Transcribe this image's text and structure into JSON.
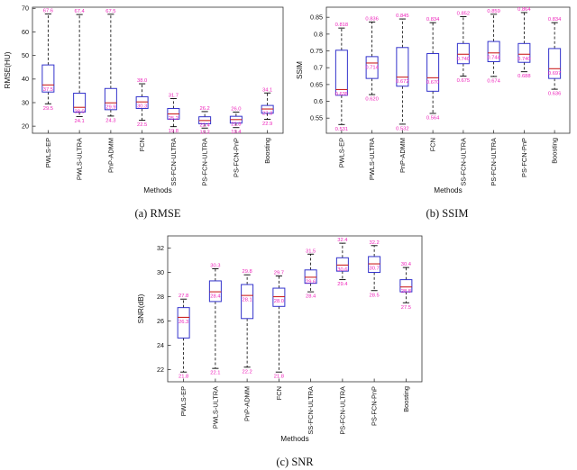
{
  "page": {
    "background": "#ffffff"
  },
  "colors": {
    "box": "#3333cc",
    "median": "#cc2222",
    "whisker": "#000000",
    "value_labels": "#ee22bb",
    "axis": "#333333",
    "text": "#111111"
  },
  "chart_data": [
    {
      "type": "boxplot",
      "caption": "(a) RMSE",
      "ylabel": "RMSE(HU)",
      "xlabel": "Methods",
      "ylim": [
        17,
        70.5
      ],
      "yticks": [
        20,
        30,
        40,
        50,
        60,
        70
      ],
      "ytick_labels": [
        "20",
        "30",
        "40",
        "50",
        "60",
        "70"
      ],
      "grid": false,
      "value_label_decimals": 1,
      "categories": [
        "PWLS-EP",
        "PWLS-ULTRA",
        "PnP-ADMM",
        "FCN",
        "SS-FCN-ULTRA",
        "PS-FCN-ULTRA",
        "PS-FCN-PnP",
        "Boosting"
      ],
      "boxes": [
        {
          "low": 29.5,
          "q1": 34.5,
          "median": 37.5,
          "q3": 46.0,
          "high": 67.6
        },
        {
          "low": 24.1,
          "q1": 26.0,
          "median": 28.0,
          "q3": 34.0,
          "high": 67.4
        },
        {
          "low": 24.3,
          "q1": 27.0,
          "median": 29.9,
          "q3": 36.0,
          "high": 67.5
        },
        {
          "low": 22.5,
          "q1": 27.5,
          "median": 30.3,
          "q3": 32.5,
          "high": 38.0
        },
        {
          "low": 19.8,
          "q1": 23.0,
          "median": 25.2,
          "q3": 27.5,
          "high": 31.7
        },
        {
          "low": 19.2,
          "q1": 21.0,
          "median": 22.4,
          "q3": 24.0,
          "high": 26.2
        },
        {
          "low": 19.4,
          "q1": 21.3,
          "median": 22.8,
          "q3": 24.2,
          "high": 26.0
        },
        {
          "low": 22.9,
          "q1": 25.5,
          "median": 27.3,
          "q3": 28.8,
          "high": 34.1
        }
      ]
    },
    {
      "type": "boxplot",
      "caption": "(b) SSIM",
      "ylabel": "SSIM",
      "xlabel": "Methods",
      "ylim": [
        0.505,
        0.88
      ],
      "yticks": [
        0.55,
        0.6,
        0.65,
        0.7,
        0.75,
        0.8,
        0.85
      ],
      "ytick_labels": [
        "0.55",
        "0.6",
        "0.65",
        "0.7",
        "0.75",
        "0.8",
        "0.85"
      ],
      "grid": false,
      "value_label_decimals": 3,
      "categories": [
        "PWLS-EP",
        "PWLS-ULTRA",
        "PnP-ADMM",
        "FCN",
        "SS-FCN-ULTRA",
        "PS-FCN-ULTRA",
        "PS-FCN-PnP",
        "Boosting"
      ],
      "boxes": [
        {
          "low": 0.531,
          "q1": 0.618,
          "median": 0.635,
          "q3": 0.752,
          "high": 0.818
        },
        {
          "low": 0.62,
          "q1": 0.668,
          "median": 0.714,
          "q3": 0.733,
          "high": 0.836
        },
        {
          "low": 0.532,
          "q1": 0.645,
          "median": 0.672,
          "q3": 0.76,
          "high": 0.845
        },
        {
          "low": 0.564,
          "q1": 0.63,
          "median": 0.67,
          "q3": 0.742,
          "high": 0.834
        },
        {
          "low": 0.675,
          "q1": 0.712,
          "median": 0.74,
          "q3": 0.772,
          "high": 0.852
        },
        {
          "low": 0.674,
          "q1": 0.718,
          "median": 0.744,
          "q3": 0.778,
          "high": 0.859
        },
        {
          "low": 0.688,
          "q1": 0.716,
          "median": 0.74,
          "q3": 0.772,
          "high": 0.864
        },
        {
          "low": 0.636,
          "q1": 0.668,
          "median": 0.697,
          "q3": 0.757,
          "high": 0.834
        }
      ]
    },
    {
      "type": "boxplot",
      "caption": "(c) SNR",
      "ylabel": "SNR(dB)",
      "xlabel": "Methods",
      "ylim": [
        21,
        33
      ],
      "yticks": [
        22,
        24,
        26,
        28,
        30,
        32
      ],
      "ytick_labels": [
        "22",
        "24",
        "26",
        "28",
        "30",
        "32"
      ],
      "grid": false,
      "value_label_decimals": 1,
      "categories": [
        "PWLS-EP",
        "PWLS-ULTRA",
        "PnP-ADMM",
        "FCN",
        "SS-FCN-ULTRA",
        "PS-FCN-ULTRA",
        "PS-FCN-PnP",
        "Boosting"
      ],
      "boxes": [
        {
          "low": 21.8,
          "q1": 24.6,
          "median": 26.3,
          "q3": 27.1,
          "high": 27.8
        },
        {
          "low": 22.1,
          "q1": 27.6,
          "median": 28.4,
          "q3": 29.3,
          "high": 30.3
        },
        {
          "low": 22.2,
          "q1": 26.2,
          "median": 28.1,
          "q3": 29.0,
          "high": 29.8
        },
        {
          "low": 21.8,
          "q1": 27.2,
          "median": 28.0,
          "q3": 28.7,
          "high": 29.7
        },
        {
          "low": 28.4,
          "q1": 29.1,
          "median": 29.6,
          "q3": 30.2,
          "high": 31.5
        },
        {
          "low": 29.4,
          "q1": 30.1,
          "median": 30.6,
          "q3": 31.2,
          "high": 32.4
        },
        {
          "low": 28.5,
          "q1": 30.0,
          "median": 30.7,
          "q3": 31.3,
          "high": 32.2
        },
        {
          "low": 27.5,
          "q1": 28.4,
          "median": 28.8,
          "q3": 29.4,
          "high": 30.4
        }
      ]
    }
  ]
}
